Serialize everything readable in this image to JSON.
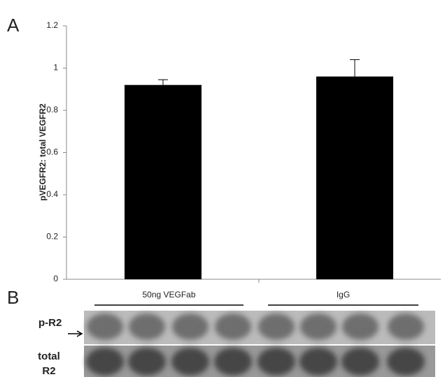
{
  "panel_labels": [
    "A",
    "B"
  ],
  "chart_data": {
    "type": "bar",
    "y_label": "pVEGFR2: total VEGFR2",
    "categories": [
      "50ng VEGFab",
      "IgG"
    ],
    "values": [
      0.92,
      0.96
    ],
    "errors": [
      0.025,
      0.08
    ],
    "color": "#000000",
    "ylim": [
      0,
      1.2
    ],
    "yticks": [
      0,
      0.2,
      0.4,
      0.6,
      0.8,
      1,
      1.2
    ]
  },
  "blot": {
    "rows": [
      [
        "p-R2"
      ],
      [
        "total",
        "R2"
      ]
    ]
  }
}
